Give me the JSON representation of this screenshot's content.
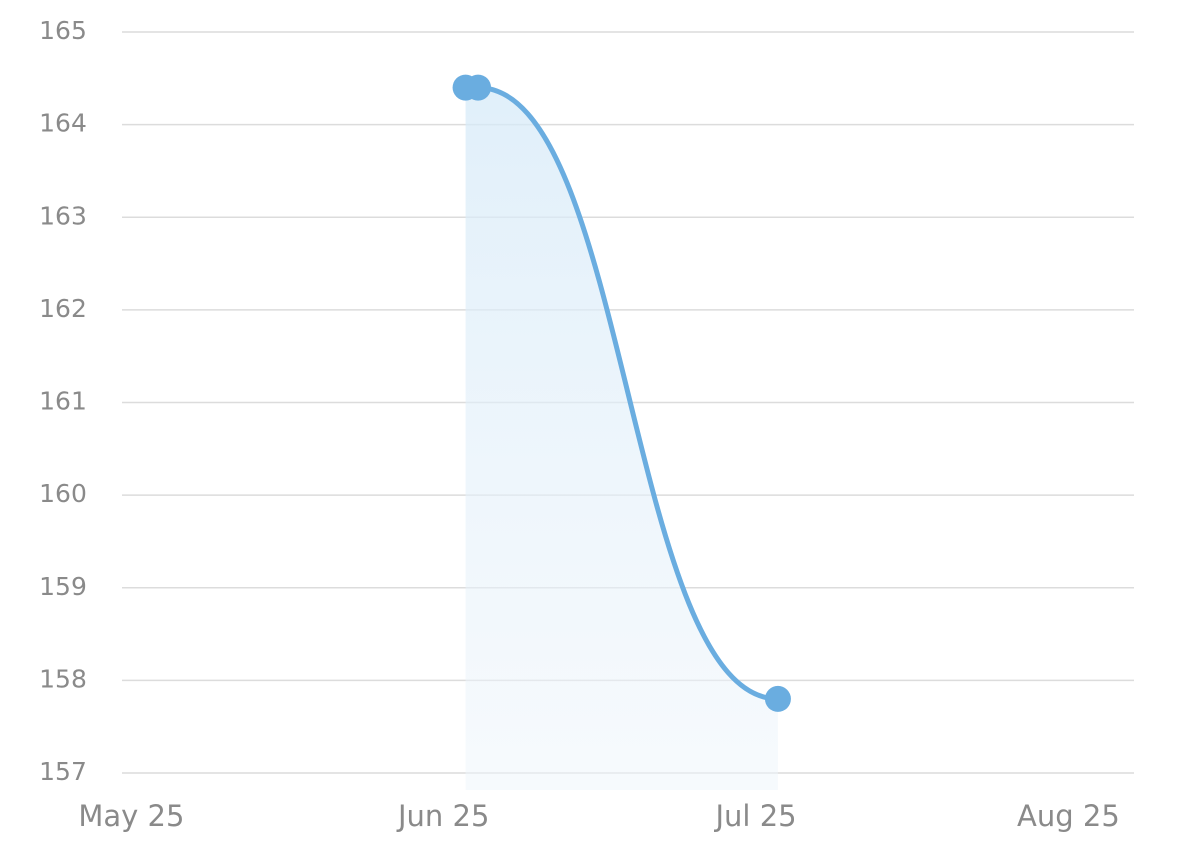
{
  "chart_data": {
    "type": "line",
    "x": [
      1.07,
      1.11,
      2.07
    ],
    "values": [
      164.4,
      164.4,
      157.8
    ],
    "color": "#6aade0",
    "area": true,
    "xlim": [
      -0.03,
      3.21
    ],
    "xticks": [
      {
        "value": 0,
        "label": "May 25"
      },
      {
        "value": 1,
        "label": "Jun 25"
      },
      {
        "value": 2,
        "label": "Jul 25"
      },
      {
        "value": 3,
        "label": "Aug 25"
      }
    ],
    "ylim": [
      157,
      165
    ],
    "yticks": [
      157,
      158,
      159,
      160,
      161,
      162,
      163,
      164,
      165
    ],
    "grid": true
  }
}
